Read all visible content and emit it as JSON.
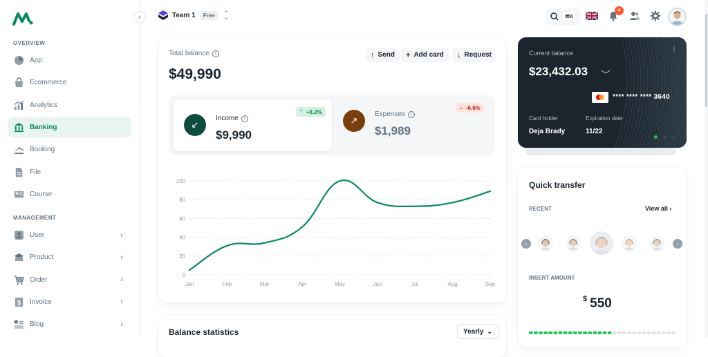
{
  "sidebar": {
    "overview_title": "OVERVIEW",
    "management_title": "MANAGEMENT",
    "overview_items": [
      {
        "label": "App",
        "icon": "app-icon"
      },
      {
        "label": "Ecommerce",
        "icon": "ecommerce-icon"
      },
      {
        "label": "Analytics",
        "icon": "analytics-icon"
      },
      {
        "label": "Banking",
        "icon": "banking-icon",
        "active": true
      },
      {
        "label": "Booking",
        "icon": "booking-icon"
      },
      {
        "label": "File",
        "icon": "file-icon"
      },
      {
        "label": "Course",
        "icon": "course-icon"
      }
    ],
    "management_items": [
      {
        "label": "User",
        "icon": "user-icon"
      },
      {
        "label": "Product",
        "icon": "product-icon"
      },
      {
        "label": "Order",
        "icon": "order-icon"
      },
      {
        "label": "Invoice",
        "icon": "invoice-icon"
      },
      {
        "label": "Blog",
        "icon": "blog-icon"
      }
    ]
  },
  "topbar": {
    "team_name": "Team 1",
    "plan_badge": "Free",
    "search_shortcut": "⌘K",
    "notifications_count": "4"
  },
  "balance": {
    "title": "Total balance",
    "value": "$49,990",
    "actions": {
      "send": "Send",
      "add_card": "Add card",
      "request": "Request"
    },
    "income": {
      "label": "Income",
      "value": "$9,990",
      "change": "+8.2%"
    },
    "expenses": {
      "label": "Expenses",
      "value": "$1,989",
      "change": "-6.6%"
    }
  },
  "chart_data": {
    "type": "line",
    "categories": [
      "Jan",
      "Feb",
      "Mar",
      "Apr",
      "May",
      "Jun",
      "Jul",
      "Aug",
      "Sep"
    ],
    "series": [
      {
        "values": [
          5,
          31,
          34,
          51,
          100,
          77,
          73,
          77,
          89
        ]
      }
    ],
    "ylim": [
      0,
      100
    ],
    "yticks": [
      0,
      20,
      40,
      60,
      80,
      100
    ],
    "grid": true,
    "color": "#078a5f"
  },
  "statistics": {
    "title": "Balance statistics",
    "period": "Yearly"
  },
  "credit_card": {
    "title": "Current balance",
    "balance": "$23,432.03",
    "card_number": "**** **** **** 3640",
    "holder_label": "Card holder",
    "holder_name": "Deja Brady",
    "expiry_label": "Expiration date",
    "expiry": "11/22"
  },
  "quick_transfer": {
    "title": "Quick transfer",
    "recent_label": "RECENT",
    "view_all": "View all",
    "insert_label": "INSERT AMOUNT",
    "currency": "$",
    "amount": "550",
    "amount_fraction": 0.55
  },
  "colors": {
    "primary": "#078a5f",
    "dark_card": "#1c252e",
    "income_circle": "#0c4d3f",
    "expense_circle": "#7a3e0d"
  }
}
